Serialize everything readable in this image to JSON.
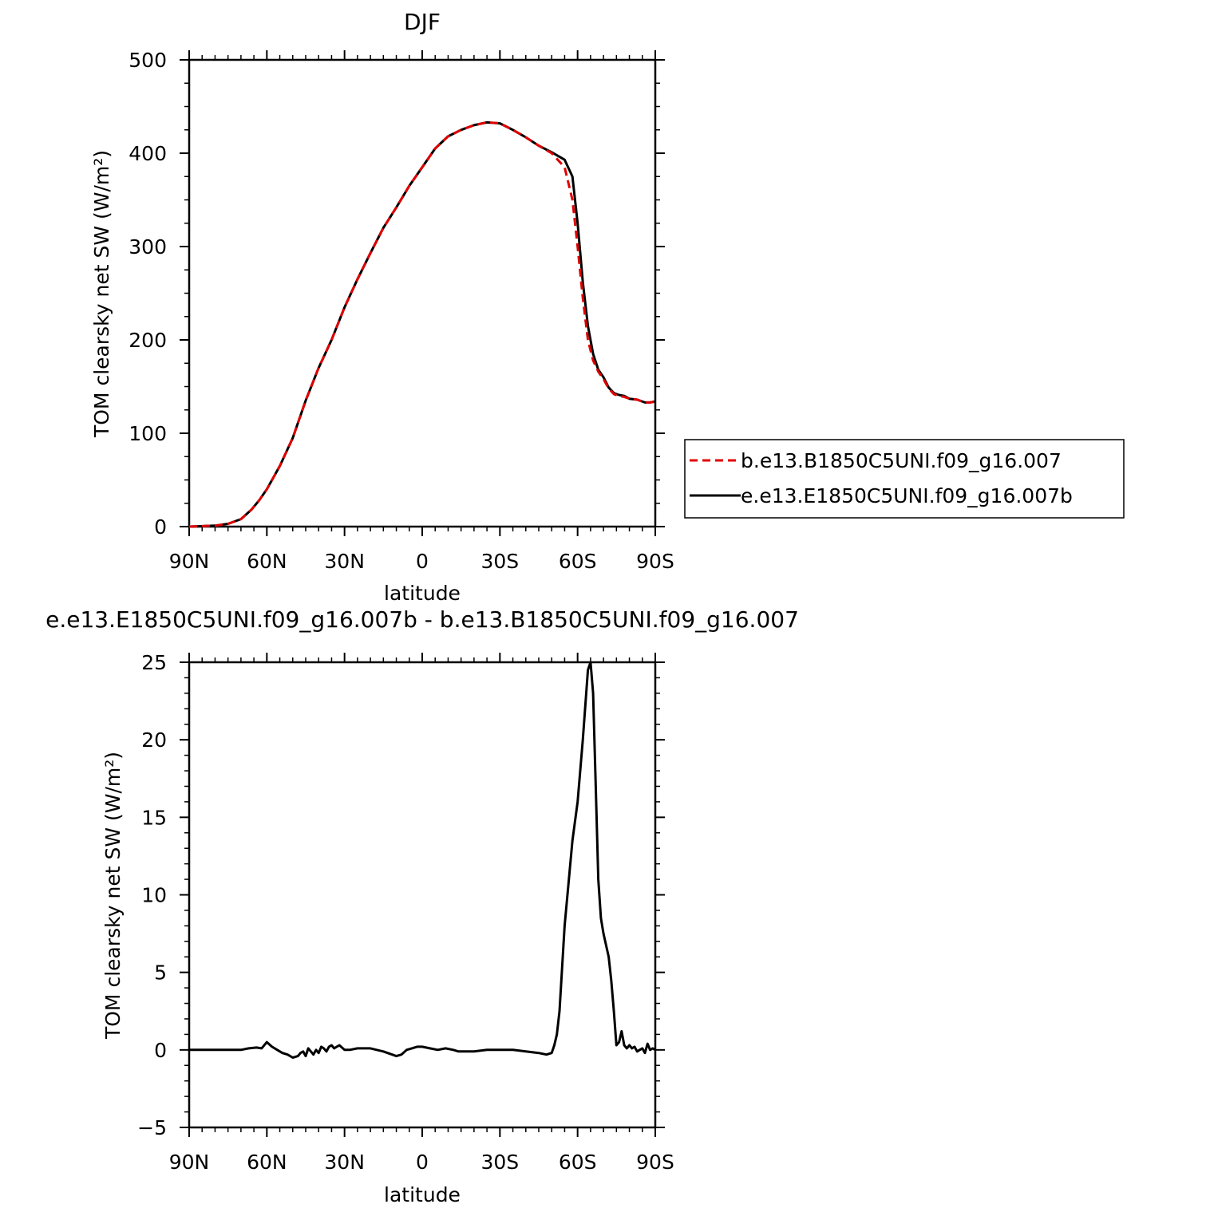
{
  "chart_data": [
    {
      "type": "line",
      "title": "DJF",
      "xlabel": "latitude",
      "ylabel": "TOM clearsky net SW (W/m²)",
      "xlim": [
        90,
        -90
      ],
      "ylim": [
        0,
        500
      ],
      "xticks": [
        90,
        60,
        30,
        0,
        -30,
        -60,
        -90
      ],
      "xtick_labels": [
        "90N",
        "60N",
        "30N",
        "0",
        "30S",
        "60S",
        "90S"
      ],
      "yticks": [
        0,
        100,
        200,
        300,
        400,
        500
      ],
      "ytick_labels": [
        "0",
        "100",
        "200",
        "300",
        "400",
        "500"
      ],
      "legend_position": "right",
      "grid": false,
      "series": [
        {
          "name": "b.e13.B1850C5UNI.f09_g16.007",
          "color": "#e00000",
          "dash": "dashed",
          "x": [
            90,
            80,
            75,
            70,
            66,
            63,
            60,
            55,
            50,
            45,
            40,
            35,
            30,
            25,
            20,
            15,
            10,
            5,
            0,
            -5,
            -10,
            -15,
            -20,
            -25,
            -30,
            -35,
            -40,
            -45,
            -50,
            -55,
            -58,
            -60,
            -62,
            -64,
            -66,
            -68,
            -70,
            -72,
            -74,
            -76,
            -78,
            -80,
            -83,
            -86,
            -88,
            -90
          ],
          "y": [
            0,
            1,
            3,
            8,
            18,
            28,
            40,
            65,
            95,
            135,
            170,
            200,
            235,
            265,
            293,
            320,
            342,
            365,
            385,
            405,
            418,
            425,
            430,
            433,
            432,
            425,
            417,
            408,
            400,
            385,
            350,
            300,
            245,
            200,
            178,
            166,
            158,
            148,
            142,
            140,
            139,
            137,
            136,
            133,
            133,
            134
          ]
        },
        {
          "name": "e.e13.E1850C5UNI.f09_g16.007b",
          "color": "#000000",
          "dash": "solid",
          "x": [
            90,
            80,
            75,
            70,
            66,
            63,
            60,
            55,
            50,
            45,
            40,
            35,
            30,
            25,
            20,
            15,
            10,
            5,
            0,
            -5,
            -10,
            -15,
            -20,
            -25,
            -30,
            -35,
            -40,
            -45,
            -50,
            -55,
            -58,
            -60,
            -62,
            -64,
            -66,
            -68,
            -70,
            -72,
            -74,
            -76,
            -78,
            -80,
            -83,
            -86,
            -88,
            -90
          ],
          "y": [
            0,
            1,
            3,
            8,
            18,
            28,
            40,
            65,
            95,
            135,
            170,
            200,
            235,
            265,
            293,
            320,
            342,
            365,
            385,
            405,
            418,
            425,
            430,
            433,
            432,
            425,
            417,
            408,
            401,
            393,
            375,
            325,
            262,
            215,
            185,
            168,
            160,
            149,
            143,
            141,
            140,
            137,
            136,
            133,
            133,
            134
          ]
        }
      ]
    },
    {
      "type": "line",
      "title": "e.e13.E1850C5UNI.f09_g16.007b - b.e13.B1850C5UNI.f09_g16.007",
      "xlabel": "latitude",
      "ylabel": "TOM clearsky net SW (W/m²)",
      "xlim": [
        90,
        -90
      ],
      "ylim": [
        -5,
        25
      ],
      "xticks": [
        90,
        60,
        30,
        0,
        -30,
        -60,
        -90
      ],
      "xtick_labels": [
        "90N",
        "60N",
        "30N",
        "0",
        "30S",
        "60S",
        "90S"
      ],
      "yticks": [
        -5,
        0,
        5,
        10,
        15,
        20,
        25
      ],
      "ytick_labels": [
        "−5",
        "0",
        "5",
        "10",
        "15",
        "20",
        "25"
      ],
      "grid": false,
      "series": [
        {
          "color": "#000000",
          "x": [
            90,
            80,
            70,
            67,
            64,
            62,
            60,
            58,
            56,
            54,
            52,
            50,
            48,
            47,
            46,
            45,
            44,
            43,
            42,
            41,
            40,
            39,
            38,
            37,
            36,
            35,
            34,
            33,
            32,
            30,
            28,
            25,
            20,
            15,
            10,
            8,
            6,
            4,
            2,
            0,
            -3,
            -6,
            -9,
            -12,
            -14,
            -15,
            -17,
            -20,
            -25,
            -30,
            -35,
            -40,
            -45,
            -48,
            -50,
            -51,
            -52,
            -53,
            -55,
            -58,
            -60,
            -62,
            -64,
            -65,
            -66,
            -67,
            -68,
            -69,
            -70,
            -72,
            -73,
            -74,
            -75,
            -76,
            -77,
            -78,
            -79,
            -80,
            -81,
            -82,
            -83,
            -84,
            -85,
            -86,
            -87,
            -88,
            -89,
            -90
          ],
          "y": [
            0,
            0,
            0,
            0.1,
            0.15,
            0.1,
            0.5,
            0.2,
            0,
            -0.2,
            -0.3,
            -0.5,
            -0.4,
            -0.2,
            -0.1,
            -0.4,
            0.1,
            -0.1,
            -0.3,
            0,
            -0.2,
            0.2,
            0.1,
            -0.1,
            0.2,
            0.3,
            0.1,
            0.2,
            0.3,
            0,
            0,
            0.1,
            0.1,
            -0.1,
            -0.4,
            -0.3,
            0,
            0.1,
            0.2,
            0.2,
            0.1,
            0,
            0.1,
            0,
            -0.1,
            -0.1,
            -0.1,
            -0.1,
            0,
            0,
            0,
            -0.1,
            -0.2,
            -0.3,
            -0.2,
            0.3,
            1,
            2.5,
            8,
            13.5,
            16,
            20,
            24.5,
            25,
            23,
            17,
            11,
            8.5,
            7.5,
            6,
            4.5,
            2.5,
            0.3,
            0.5,
            1.2,
            0.3,
            0.1,
            0.3,
            0.1,
            0.2,
            -0.1,
            0,
            0.1,
            -0.2,
            0.4,
            0,
            0.1,
            0
          ]
        }
      ]
    }
  ]
}
